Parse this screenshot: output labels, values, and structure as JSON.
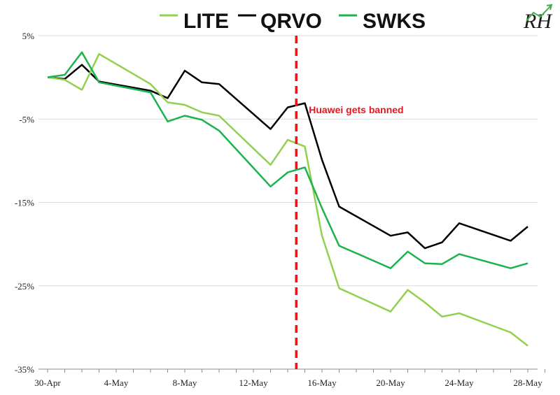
{
  "chart_data": {
    "type": "line",
    "title": "",
    "xlabel": "",
    "ylabel": "",
    "x_tick_labels": [
      "30-Apr",
      "4-May",
      "8-May",
      "12-May",
      "16-May",
      "20-May",
      "24-May",
      "28-May"
    ],
    "y_tick_labels": [
      "5%",
      "-5%",
      "-15%",
      "-25%",
      "-35%"
    ],
    "ylim": [
      -35,
      5
    ],
    "xlim": [
      0,
      29
    ],
    "grid": "horizontal",
    "legend": "top",
    "series": [
      {
        "name": "LITE",
        "color": "#92d050",
        "x": [
          0,
          1,
          2,
          3,
          6,
          7,
          8,
          9,
          10,
          13,
          14,
          15,
          16,
          17,
          20,
          21,
          22,
          23,
          24,
          27,
          28
        ],
        "y": [
          0,
          -0.3,
          -1.5,
          2.8,
          -0.8,
          -3,
          -3.3,
          -4.2,
          -4.6,
          -10.5,
          -7.5,
          -8.3,
          -19,
          -25.3,
          -28.1,
          -25.5,
          -27,
          -28.7,
          -28.3,
          -30.6,
          -32.2
        ]
      },
      {
        "name": "QRVO",
        "color": "#000000",
        "x": [
          0,
          1,
          2,
          3,
          6,
          7,
          8,
          9,
          10,
          13,
          14,
          15,
          16,
          17,
          20,
          21,
          22,
          23,
          24,
          27,
          28
        ],
        "y": [
          0,
          -0.2,
          1.5,
          -0.5,
          -1.6,
          -2.5,
          0.8,
          -0.6,
          -0.8,
          -6.2,
          -3.6,
          -3.1,
          -9.9,
          -15.5,
          -19,
          -18.6,
          -20.5,
          -19.8,
          -17.5,
          -19.6,
          -17.9
        ]
      },
      {
        "name": "SWKS",
        "color": "#1ab34c",
        "x": [
          0,
          1,
          2,
          3,
          6,
          7,
          8,
          9,
          10,
          13,
          14,
          15,
          16,
          17,
          20,
          21,
          22,
          23,
          24,
          27,
          28
        ],
        "y": [
          0,
          0.3,
          3,
          -0.6,
          -1.8,
          -5.3,
          -4.6,
          -5.1,
          -6.4,
          -13.1,
          -11.4,
          -10.8,
          -15.7,
          -20.2,
          -22.9,
          -20.9,
          -22.3,
          -22.4,
          -21.2,
          -22.9,
          -22.3
        ]
      }
    ],
    "annotations": [
      {
        "type": "vline",
        "x": 14.5,
        "color": "#e8151b",
        "label": "Huawei gets banned"
      }
    ],
    "logo_text": "RH"
  }
}
